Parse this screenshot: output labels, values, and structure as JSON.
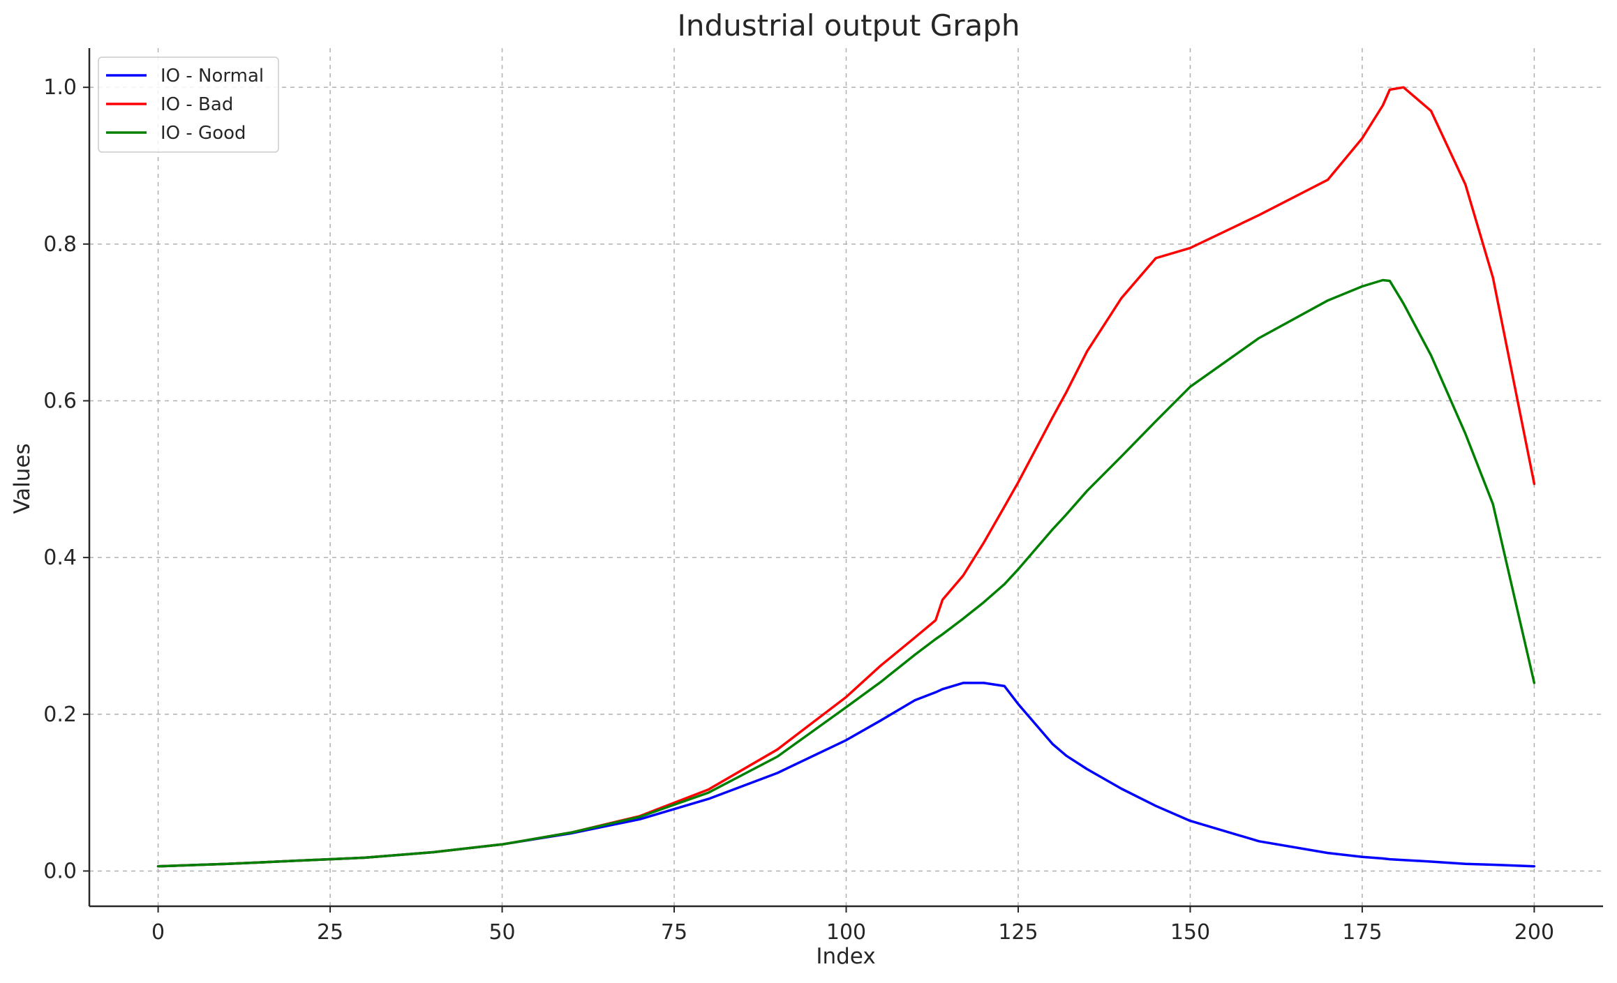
{
  "chart_data": {
    "type": "line",
    "title": "Industrial output Graph",
    "xlabel": "Index",
    "ylabel": "Values",
    "xlim": [
      -10,
      210
    ],
    "ylim": [
      -0.045,
      1.05
    ],
    "x_ticks": [
      0,
      25,
      50,
      75,
      100,
      125,
      150,
      175,
      200
    ],
    "x_tick_labels": [
      "0",
      "25",
      "50",
      "75",
      "100",
      "125",
      "150",
      "175",
      "200"
    ],
    "y_ticks": [
      0.0,
      0.2,
      0.4,
      0.6,
      0.8,
      1.0
    ],
    "y_tick_labels": [
      "0.0",
      "0.2",
      "0.4",
      "0.6",
      "0.8",
      "1.0"
    ],
    "grid": true,
    "legend_position": "top-left",
    "x": [
      0,
      10,
      20,
      30,
      40,
      50,
      60,
      70,
      80,
      90,
      100,
      105,
      110,
      113,
      114,
      117,
      120,
      123,
      125,
      130,
      132,
      135,
      140,
      145,
      150,
      160,
      170,
      175,
      178,
      179,
      181,
      185,
      190,
      194,
      200
    ],
    "series": [
      {
        "name": "IO - Normal",
        "color": "#0000ff",
        "values": [
          0.006,
          0.009,
          0.013,
          0.017,
          0.024,
          0.034,
          0.048,
          0.066,
          0.092,
          0.125,
          0.167,
          0.192,
          0.218,
          0.228,
          0.232,
          0.24,
          0.24,
          0.236,
          0.213,
          0.162,
          0.147,
          0.13,
          0.105,
          0.083,
          0.064,
          0.038,
          0.023,
          0.018,
          0.016,
          0.015,
          0.014,
          0.012,
          0.009,
          0.008,
          0.006
        ]
      },
      {
        "name": "IO - Bad",
        "color": "#ff0000",
        "values": [
          0.006,
          0.009,
          0.013,
          0.017,
          0.024,
          0.034,
          0.049,
          0.07,
          0.104,
          0.155,
          0.222,
          0.262,
          0.298,
          0.32,
          0.346,
          0.377,
          0.419,
          0.465,
          0.496,
          0.579,
          0.611,
          0.663,
          0.731,
          0.782,
          0.795,
          0.837,
          0.882,
          0.935,
          0.977,
          0.997,
          1.0,
          0.97,
          0.876,
          0.757,
          0.494
        ]
      },
      {
        "name": "IO - Good",
        "color": "#008000",
        "values": [
          0.006,
          0.009,
          0.013,
          0.017,
          0.024,
          0.034,
          0.049,
          0.069,
          0.1,
          0.146,
          0.209,
          0.241,
          0.276,
          0.296,
          0.302,
          0.322,
          0.343,
          0.366,
          0.385,
          0.436,
          0.455,
          0.485,
          0.529,
          0.574,
          0.618,
          0.68,
          0.728,
          0.746,
          0.754,
          0.753,
          0.724,
          0.658,
          0.558,
          0.468,
          0.24
        ]
      }
    ]
  }
}
